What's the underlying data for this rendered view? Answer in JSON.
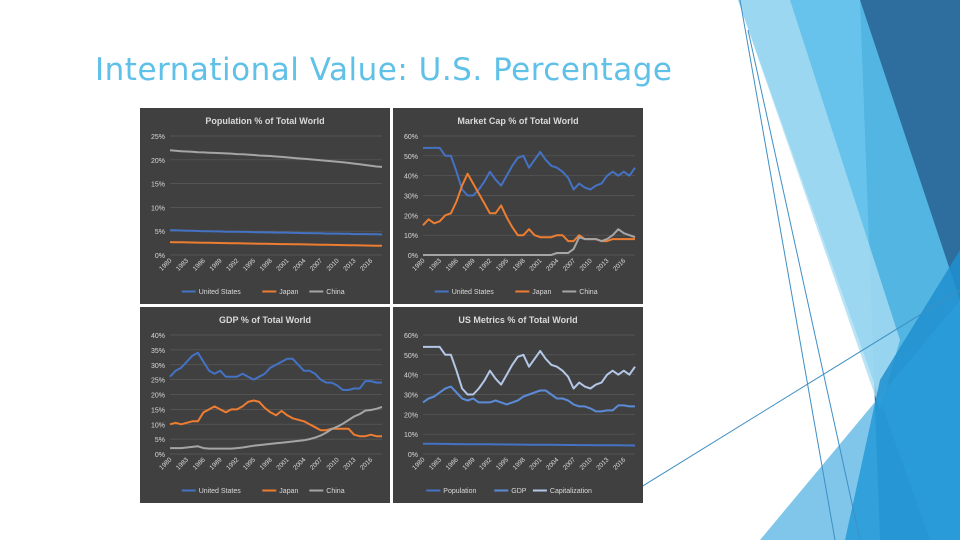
{
  "slide": {
    "title": "International Value: U.S. Percentage"
  },
  "theme": {
    "accent": "#5fc0e8",
    "panel_bg": "#404040",
    "grid": "#5a5a5a",
    "text": "#d9d9d9",
    "us": "#4472c4",
    "japan": "#ed7d31",
    "china": "#a5a5a5",
    "capitalization": "#b4c7e7"
  },
  "chart_data": [
    {
      "type": "line",
      "title": "Population % of Total World",
      "x": [
        1980,
        1981,
        1982,
        1983,
        1984,
        1985,
        1986,
        1987,
        1988,
        1989,
        1990,
        1991,
        1992,
        1993,
        1994,
        1995,
        1996,
        1997,
        1998,
        1999,
        2000,
        2001,
        2002,
        2003,
        2004,
        2005,
        2006,
        2007,
        2008,
        2009,
        2010,
        2011,
        2012,
        2013,
        2014,
        2015,
        2016,
        2017,
        2018
      ],
      "x_ticks": [
        "1980",
        "1983",
        "1986",
        "1989",
        "1992",
        "1995",
        "1998",
        "2001",
        "2004",
        "2007",
        "2010",
        "2013",
        "2016"
      ],
      "ylim": [
        0,
        25
      ],
      "y_ticks": [
        "0%",
        "5%",
        "10%",
        "15%",
        "20%",
        "25%"
      ],
      "series": [
        {
          "name": "United States",
          "color": "#4472c4",
          "values": [
            5.2,
            5.2,
            5.15,
            5.1,
            5.1,
            5.05,
            5.0,
            5.0,
            4.95,
            4.95,
            4.9,
            4.9,
            4.9,
            4.85,
            4.85,
            4.8,
            4.8,
            4.75,
            4.75,
            4.7,
            4.7,
            4.7,
            4.65,
            4.65,
            4.6,
            4.6,
            4.55,
            4.55,
            4.5,
            4.5,
            4.5,
            4.45,
            4.45,
            4.4,
            4.4,
            4.4,
            4.35,
            4.35,
            4.3
          ]
        },
        {
          "name": "Japan",
          "color": "#ed7d31",
          "values": [
            2.7,
            2.68,
            2.66,
            2.64,
            2.62,
            2.6,
            2.58,
            2.56,
            2.54,
            2.52,
            2.5,
            2.48,
            2.46,
            2.44,
            2.42,
            2.4,
            2.38,
            2.36,
            2.34,
            2.32,
            2.3,
            2.28,
            2.26,
            2.24,
            2.22,
            2.2,
            2.18,
            2.16,
            2.14,
            2.12,
            2.1,
            2.08,
            2.06,
            2.04,
            2.02,
            2.0,
            1.98,
            1.96,
            1.94
          ]
        },
        {
          "name": "China",
          "color": "#a5a5a5",
          "values": [
            22.0,
            21.9,
            21.8,
            21.75,
            21.7,
            21.6,
            21.55,
            21.5,
            21.45,
            21.4,
            21.35,
            21.3,
            21.2,
            21.15,
            21.1,
            21.0,
            20.9,
            20.85,
            20.8,
            20.7,
            20.6,
            20.5,
            20.4,
            20.3,
            20.2,
            20.1,
            20.0,
            19.9,
            19.8,
            19.7,
            19.6,
            19.5,
            19.35,
            19.2,
            19.05,
            18.9,
            18.75,
            18.6,
            18.5
          ]
        }
      ]
    },
    {
      "type": "line",
      "title": "Market Cap % of Total World",
      "x": [
        1980,
        1981,
        1982,
        1983,
        1984,
        1985,
        1986,
        1987,
        1988,
        1989,
        1990,
        1991,
        1992,
        1993,
        1994,
        1995,
        1996,
        1997,
        1998,
        1999,
        2000,
        2001,
        2002,
        2003,
        2004,
        2005,
        2006,
        2007,
        2008,
        2009,
        2010,
        2011,
        2012,
        2013,
        2014,
        2015,
        2016,
        2017,
        2018
      ],
      "x_ticks": [
        "1980",
        "1983",
        "1986",
        "1989",
        "1992",
        "1995",
        "1998",
        "2001",
        "2004",
        "2007",
        "2010",
        "2013",
        "2016"
      ],
      "ylim": [
        0,
        60
      ],
      "y_ticks": [
        "0%",
        "10%",
        "20%",
        "30%",
        "40%",
        "50%",
        "60%"
      ],
      "series": [
        {
          "name": "United States",
          "color": "#4472c4",
          "values": [
            54,
            54,
            54,
            54,
            50,
            50,
            42,
            33,
            30,
            30,
            33,
            37,
            42,
            38,
            35,
            40,
            45,
            49,
            50,
            44,
            48,
            52,
            48,
            45,
            44,
            42,
            39,
            33,
            36,
            34,
            33,
            35,
            36,
            40,
            42,
            40,
            42,
            40,
            44
          ]
        },
        {
          "name": "Japan",
          "color": "#ed7d31",
          "values": [
            15,
            18,
            16,
            17,
            20,
            21,
            27,
            35,
            41,
            36,
            31,
            26,
            21,
            21,
            25,
            19,
            14,
            10,
            10,
            13,
            10,
            9,
            9,
            9,
            10,
            10,
            7,
            7,
            10,
            8,
            8,
            8,
            7,
            7,
            8,
            8,
            8,
            8,
            8
          ]
        },
        {
          "name": "China",
          "color": "#a5a5a5",
          "values": [
            0,
            0,
            0,
            0,
            0,
            0,
            0,
            0,
            0,
            0,
            0,
            0,
            0,
            0,
            0,
            0,
            0,
            0,
            0,
            0,
            0,
            0,
            0,
            0,
            1,
            1,
            1,
            3,
            9,
            8,
            8,
            8,
            7,
            8,
            10,
            13,
            11,
            10,
            9
          ]
        }
      ]
    },
    {
      "type": "line",
      "title": "GDP % of Total World",
      "x": [
        1980,
        1981,
        1982,
        1983,
        1984,
        1985,
        1986,
        1987,
        1988,
        1989,
        1990,
        1991,
        1992,
        1993,
        1994,
        1995,
        1996,
        1997,
        1998,
        1999,
        2000,
        2001,
        2002,
        2003,
        2004,
        2005,
        2006,
        2007,
        2008,
        2009,
        2010,
        2011,
        2012,
        2013,
        2014,
        2015,
        2016,
        2017,
        2018
      ],
      "x_ticks": [
        "1980",
        "1983",
        "1986",
        "1989",
        "1992",
        "1995",
        "1998",
        "2001",
        "2004",
        "2007",
        "2010",
        "2013",
        "2016"
      ],
      "ylim": [
        0,
        40
      ],
      "y_ticks": [
        "0%",
        "5%",
        "10%",
        "15%",
        "20%",
        "25%",
        "30%",
        "35%",
        "40%"
      ],
      "series": [
        {
          "name": "United States",
          "color": "#4472c4",
          "values": [
            26,
            28,
            29,
            31,
            33,
            34,
            31,
            28,
            27,
            28,
            26,
            26,
            26,
            27,
            26,
            25,
            26,
            27,
            29,
            30,
            31,
            32,
            32,
            30,
            28,
            28,
            27,
            25,
            24,
            24,
            23,
            21.5,
            21.5,
            22,
            22,
            24.5,
            24.5,
            24,
            24
          ]
        },
        {
          "name": "Japan",
          "color": "#ed7d31",
          "values": [
            10,
            10.5,
            10,
            10.5,
            11,
            11,
            14,
            15,
            16,
            15,
            14,
            15,
            15,
            16,
            17.5,
            18,
            17.5,
            15.5,
            14,
            13,
            14.5,
            13,
            12,
            11.5,
            11,
            10,
            9,
            8,
            8,
            8.5,
            8.5,
            8.5,
            8.5,
            6.5,
            6,
            6,
            6.5,
            6,
            6
          ]
        },
        {
          "name": "China",
          "color": "#a5a5a5",
          "values": [
            2,
            2,
            2,
            2.2,
            2.4,
            2.6,
            2,
            1.8,
            1.8,
            1.8,
            1.8,
            1.8,
            2,
            2.2,
            2.5,
            2.8,
            3,
            3.2,
            3.4,
            3.6,
            3.8,
            4,
            4.2,
            4.4,
            4.6,
            5,
            5.5,
            6.2,
            7.2,
            8.4,
            9.2,
            10.2,
            11.4,
            12.6,
            13.4,
            14.6,
            14.8,
            15.2,
            15.8
          ]
        }
      ]
    },
    {
      "type": "line",
      "title": "US Metrics % of Total World",
      "x": [
        1980,
        1981,
        1982,
        1983,
        1984,
        1985,
        1986,
        1987,
        1988,
        1989,
        1990,
        1991,
        1992,
        1993,
        1994,
        1995,
        1996,
        1997,
        1998,
        1999,
        2000,
        2001,
        2002,
        2003,
        2004,
        2005,
        2006,
        2007,
        2008,
        2009,
        2010,
        2011,
        2012,
        2013,
        2014,
        2015,
        2016,
        2017,
        2018
      ],
      "x_ticks": [
        "1980",
        "1983",
        "1986",
        "1989",
        "1992",
        "1995",
        "1998",
        "2001",
        "2004",
        "2007",
        "2010",
        "2013",
        "2016"
      ],
      "ylim": [
        0,
        60
      ],
      "y_ticks": [
        "0%",
        "10%",
        "20%",
        "30%",
        "40%",
        "50%",
        "60%"
      ],
      "series": [
        {
          "name": "Population",
          "color": "#4472c4",
          "values": [
            5.2,
            5.2,
            5.15,
            5.1,
            5.1,
            5.05,
            5.0,
            5.0,
            4.95,
            4.95,
            4.9,
            4.9,
            4.9,
            4.85,
            4.85,
            4.8,
            4.8,
            4.75,
            4.75,
            4.7,
            4.7,
            4.7,
            4.65,
            4.65,
            4.6,
            4.6,
            4.55,
            4.55,
            4.5,
            4.5,
            4.5,
            4.45,
            4.45,
            4.4,
            4.4,
            4.4,
            4.35,
            4.35,
            4.3
          ]
        },
        {
          "name": "GDP",
          "color": "#5b8bd6",
          "values": [
            26,
            28,
            29,
            31,
            33,
            34,
            31,
            28,
            27,
            28,
            26,
            26,
            26,
            27,
            26,
            25,
            26,
            27,
            29,
            30,
            31,
            32,
            32,
            30,
            28,
            28,
            27,
            25,
            24,
            24,
            23,
            21.5,
            21.5,
            22,
            22,
            24.5,
            24.5,
            24,
            24
          ]
        },
        {
          "name": "Capitalization",
          "color": "#b4c7e7",
          "values": [
            54,
            54,
            54,
            54,
            50,
            50,
            42,
            33,
            30,
            30,
            33,
            37,
            42,
            38,
            35,
            40,
            45,
            49,
            50,
            44,
            48,
            52,
            48,
            45,
            44,
            42,
            39,
            33,
            36,
            34,
            33,
            35,
            36,
            40,
            42,
            40,
            42,
            40,
            44
          ]
        }
      ]
    }
  ]
}
